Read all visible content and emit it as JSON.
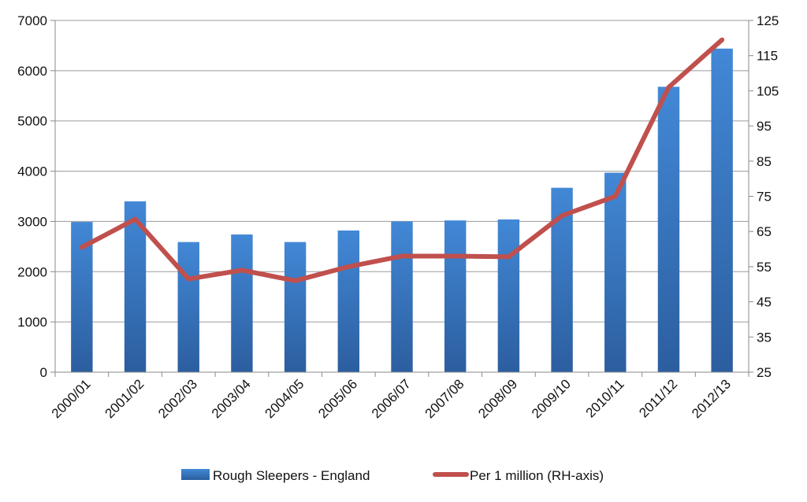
{
  "chart_data": {
    "type": "bar",
    "categories": [
      "2000/01",
      "2001/02",
      "2002/03",
      "2003/04",
      "2004/05",
      "2005/06",
      "2006/07",
      "2007/08",
      "2008/09",
      "2009/10",
      "2010/11",
      "2011/12",
      "2012/13"
    ],
    "series": [
      {
        "name": "Rough Sleepers - England",
        "type": "bar",
        "axis": "left",
        "color": "#3a78c4",
        "values": [
          2990,
          3400,
          2590,
          2740,
          2590,
          2820,
          3000,
          3020,
          3040,
          3670,
          3970,
          5680,
          6440
        ]
      },
      {
        "name": "Per 1 million (RH-axis)",
        "type": "line",
        "axis": "right",
        "color": "#c0504d",
        "values": [
          60.5,
          68.5,
          51.5,
          54.0,
          51.0,
          55.0,
          58.0,
          58.0,
          57.8,
          69.5,
          75.0,
          106.0,
          119.5
        ]
      }
    ],
    "y_left": {
      "ylim": [
        0,
        7000
      ],
      "ticks": [
        "0",
        "1000",
        "2000",
        "3000",
        "4000",
        "5000",
        "6000",
        "7000"
      ]
    },
    "y_right": {
      "ylim": [
        25,
        125
      ],
      "ticks": [
        "25",
        "35",
        "45",
        "55",
        "65",
        "75",
        "85",
        "95",
        "105",
        "115",
        "125"
      ]
    },
    "grid": true,
    "legend_position": "bottom"
  }
}
